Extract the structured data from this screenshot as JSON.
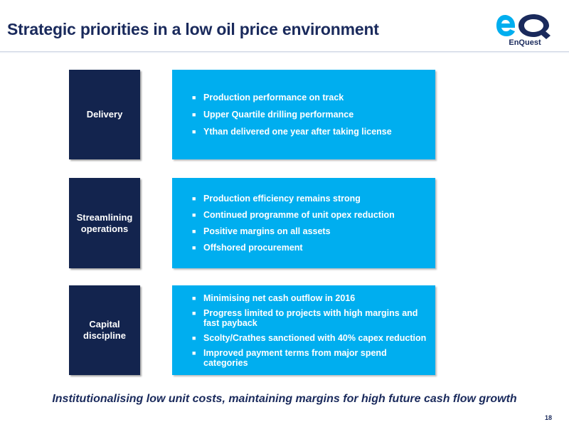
{
  "title": "Strategic priorities in a low oil price environment",
  "logo": {
    "text": "EnQuest",
    "icon": "eq-logo-icon",
    "brand_color": "#1a2a5c",
    "accent_color": "#00aeef"
  },
  "sections": [
    {
      "label": "Delivery",
      "items": [
        "Production performance on track",
        "Upper Quartile drilling performance",
        "Ythan delivered one year after taking license"
      ]
    },
    {
      "label": "Streamlining operations",
      "label_lines": [
        "Streamlining",
        "operations"
      ],
      "items": [
        "Production efficiency remains strong",
        "Continued programme of unit opex reduction",
        "Positive margins on all assets",
        "Offshored procurement"
      ]
    },
    {
      "label": "Capital discipline",
      "label_lines": [
        "Capital",
        "discipline"
      ],
      "items": [
        "Minimising net cash outflow in 2016",
        "Progress limited to projects with high margins and fast payback",
        "Scolty/Crathes sanctioned with 40% capex reduction",
        "Improved payment terms from major spend categories"
      ]
    }
  ],
  "footer": {
    "tagline": "Institutionalising low unit costs, maintaining margins for high future cash flow growth",
    "page_number": "18"
  },
  "colors": {
    "label_box": "#13244e",
    "content_box": "#00aeef",
    "title_text": "#1a2a5c"
  }
}
